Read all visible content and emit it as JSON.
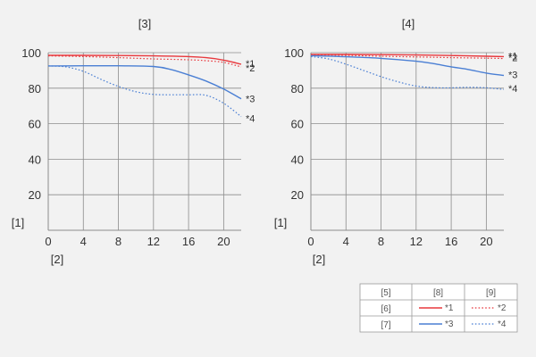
{
  "colors": {
    "red": "#e8383d",
    "blue": "#4a7fd4",
    "grid": "#8c8c8c",
    "background": "#f2f2f2",
    "legend_border": "#9a9a9a"
  },
  "chart_data": [
    {
      "type": "line",
      "title": "[3]",
      "ylabel": "[1]",
      "xlabel": "[2]",
      "xlim": [
        0,
        22
      ],
      "ylim": [
        0,
        100
      ],
      "x_ticks": [
        "0",
        "4",
        "8",
        "12",
        "16",
        "20"
      ],
      "y_ticks": [
        "20",
        "40",
        "60",
        "80",
        "100"
      ],
      "grid": true,
      "series": [
        {
          "name": "*1",
          "color": "red",
          "style": "solid",
          "points": [
            [
              0,
              98.5
            ],
            [
              4,
              98.5
            ],
            [
              8,
              98.4
            ],
            [
              12,
              98.2
            ],
            [
              16,
              97.8
            ],
            [
              18,
              97.2
            ],
            [
              20,
              95.8
            ],
            [
              22,
              93.5
            ]
          ]
        },
        {
          "name": "*2",
          "color": "red",
          "style": "dotted",
          "points": [
            [
              0,
              98.2
            ],
            [
              4,
              97.8
            ],
            [
              8,
              97.2
            ],
            [
              12,
              96.5
            ],
            [
              16,
              96.0
            ],
            [
              18,
              95.5
            ],
            [
              20,
              94.5
            ],
            [
              22,
              92.0
            ]
          ]
        },
        {
          "name": "*3",
          "color": "blue",
          "style": "solid",
          "points": [
            [
              0,
              92.5
            ],
            [
              4,
              92.6
            ],
            [
              8,
              92.6
            ],
            [
              12,
              92.2
            ],
            [
              14,
              90.5
            ],
            [
              16,
              87.5
            ],
            [
              18,
              84.0
            ],
            [
              20,
              79.5
            ],
            [
              22,
              74.0
            ]
          ]
        },
        {
          "name": "*4",
          "color": "blue",
          "style": "dotted",
          "points": [
            [
              0,
              92.5
            ],
            [
              2,
              92.0
            ],
            [
              4,
              89.5
            ],
            [
              6,
              85.0
            ],
            [
              8,
              81.0
            ],
            [
              10,
              78.0
            ],
            [
              12,
              76.5
            ],
            [
              14,
              76.3
            ],
            [
              16,
              76.3
            ],
            [
              18,
              76.0
            ],
            [
              20,
              71.5
            ],
            [
              22,
              64.0
            ]
          ]
        }
      ]
    },
    {
      "type": "line",
      "title": "[4]",
      "ylabel": "[1]",
      "xlabel": "[2]",
      "xlim": [
        0,
        22
      ],
      "ylim": [
        0,
        100
      ],
      "x_ticks": [
        "0",
        "4",
        "8",
        "12",
        "16",
        "20"
      ],
      "y_ticks": [
        "20",
        "40",
        "60",
        "80",
        "100"
      ],
      "grid": true,
      "series": [
        {
          "name": "*1",
          "color": "red",
          "style": "solid",
          "points": [
            [
              0,
              99.0
            ],
            [
              4,
              99.0
            ],
            [
              8,
              98.9
            ],
            [
              12,
              98.7
            ],
            [
              16,
              98.4
            ],
            [
              20,
              98.0
            ],
            [
              22,
              97.8
            ]
          ]
        },
        {
          "name": "*2",
          "color": "red",
          "style": "dotted",
          "points": [
            [
              0,
              98.8
            ],
            [
              4,
              98.5
            ],
            [
              8,
              98.0
            ],
            [
              12,
              97.6
            ],
            [
              16,
              97.2
            ],
            [
              20,
              96.9
            ],
            [
              22,
              96.7
            ]
          ]
        },
        {
          "name": "*3",
          "color": "blue",
          "style": "solid",
          "points": [
            [
              0,
              98.3
            ],
            [
              4,
              97.7
            ],
            [
              8,
              96.8
            ],
            [
              12,
              95.2
            ],
            [
              14,
              93.8
            ],
            [
              16,
              92.0
            ],
            [
              18,
              90.5
            ],
            [
              20,
              88.5
            ],
            [
              22,
              87.2
            ]
          ]
        },
        {
          "name": "*4",
          "color": "blue",
          "style": "dotted",
          "points": [
            [
              0,
              97.8
            ],
            [
              2,
              96.5
            ],
            [
              4,
              93.5
            ],
            [
              6,
              90.0
            ],
            [
              8,
              86.5
            ],
            [
              10,
              83.5
            ],
            [
              12,
              81.2
            ],
            [
              14,
              80.3
            ],
            [
              16,
              80.2
            ],
            [
              18,
              80.5
            ],
            [
              20,
              80.2
            ],
            [
              22,
              79.3
            ]
          ]
        }
      ]
    }
  ],
  "legend": {
    "headers": [
      "[5]",
      "[8]",
      "[9]"
    ],
    "rows": [
      {
        "label": "[6]",
        "color": "red",
        "items": [
          "*1",
          "*2"
        ]
      },
      {
        "label": "[7]",
        "color": "blue",
        "items": [
          "*3",
          "*4"
        ]
      }
    ]
  }
}
